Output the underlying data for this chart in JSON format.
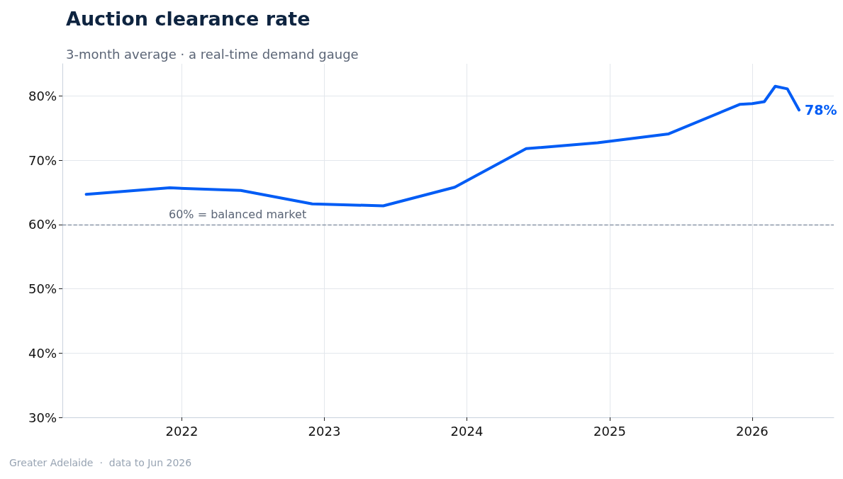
{
  "chart_data": {
    "type": "line",
    "title": "Auction clearance rate",
    "subtitle": "3-month average · a real-time demand gauge",
    "x": [
      "2021-05",
      "2021-12",
      "2022-06",
      "2022-12",
      "2023-06",
      "2023-12",
      "2024-06",
      "2024-12",
      "2025-06",
      "2025-12",
      "2026-01",
      "2026-02",
      "2026-03",
      "2026-04",
      "2026-05"
    ],
    "series": [
      {
        "color": "#005cf5",
        "values": [
          64.7,
          65.7,
          65.3,
          63.2,
          62.9,
          65.8,
          71.8,
          72.7,
          74.1,
          78.7,
          78.8,
          79.1,
          81.5,
          81.1,
          77.8
        ]
      }
    ],
    "xlim": [
      "2021-03-01",
      "2026-07-29"
    ],
    "xticks": [
      "2022",
      "2023",
      "2024",
      "2025",
      "2026"
    ],
    "ylim": [
      30,
      85
    ],
    "yticks": [
      {
        "value": 30,
        "label": "30%"
      },
      {
        "value": 40,
        "label": "40%"
      },
      {
        "value": 50,
        "label": "50%"
      },
      {
        "value": 60,
        "label": "60%"
      },
      {
        "value": 70,
        "label": "70%"
      },
      {
        "value": 80,
        "label": "80%"
      }
    ],
    "ref_lines": [
      {
        "axis": "y",
        "value": 60,
        "label": "60% = balanced market",
        "color": "#8a96a8",
        "line_style": "dashed"
      }
    ],
    "annotations": [
      {
        "text": "78%",
        "x": "2026-05",
        "y": 77.8
      },
      "Greater Adelaide  ·  data to Jun 2026"
    ],
    "grid": true,
    "marker": "none",
    "line_style": "solid"
  }
}
